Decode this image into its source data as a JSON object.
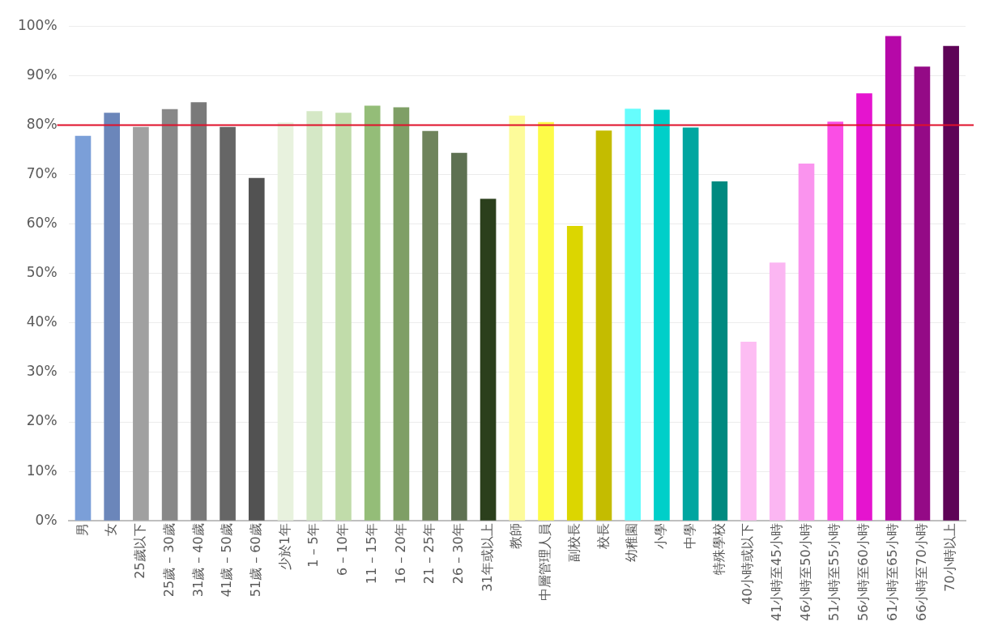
{
  "chart_data": {
    "type": "bar",
    "categories": [
      "男",
      "女",
      "25歲以下",
      "25歲 – 30歲",
      "31歲 – 40歲",
      "41歲 – 50歲",
      "51歲 – 60歲",
      "少於1年",
      "1 – 5年",
      "6 – 10年",
      "11 – 15年",
      "16 – 20年",
      "21 – 25年",
      "26 – 30年",
      "31年或以上",
      "教師",
      "中層管理人員",
      "副校長",
      "校長",
      "幼稚園",
      "小學",
      "中學",
      "特殊學校",
      "40小時或以下",
      "41小時至45小時",
      "46小時至50小時",
      "51小時至55小時",
      "56小時至60小時",
      "61小時至65小時",
      "66小時至70小時",
      "70小時以上"
    ],
    "values": [
      77.8,
      82.5,
      79.6,
      83.2,
      84.6,
      79.6,
      69.3,
      80.5,
      82.8,
      82.5,
      83.9,
      83.6,
      78.8,
      74.4,
      65.1,
      81.9,
      80.6,
      59.6,
      78.9,
      83.3,
      83.1,
      79.5,
      68.6,
      36.2,
      52.2,
      72.2,
      80.7,
      86.4,
      98.0,
      91.8,
      96.0
    ],
    "colors": [
      "#7b9fd8",
      "#6b86ba",
      "#a0a0a0",
      "#888888",
      "#7a7a7a",
      "#666666",
      "#525252",
      "#e8f2de",
      "#d5e8c6",
      "#c1dcaa",
      "#94bd78",
      "#7f9f66",
      "#6f845c",
      "#5e7152",
      "#2b3f1c",
      "#fdfb9a",
      "#fdfb48",
      "#dcd600",
      "#c4bc00",
      "#66fdfd",
      "#00cfc9",
      "#00a6a0",
      "#008a80",
      "#fdbdf3",
      "#fbb6f2",
      "#fa94ee",
      "#fa4ee5",
      "#e514cf",
      "#b608a8",
      "#940a86",
      "#5e0457"
    ],
    "ylim": [
      0,
      100
    ],
    "yticks": [
      {
        "value": 0,
        "label": "0%"
      },
      {
        "value": 10,
        "label": "10%"
      },
      {
        "value": 20,
        "label": "20%"
      },
      {
        "value": 30,
        "label": "30%"
      },
      {
        "value": 40,
        "label": "40%"
      },
      {
        "value": 50,
        "label": "50%"
      },
      {
        "value": 60,
        "label": "60%"
      },
      {
        "value": 70,
        "label": "70%"
      },
      {
        "value": 80,
        "label": "80%"
      },
      {
        "value": 90,
        "label": "90%"
      },
      {
        "value": 100,
        "label": "100%"
      }
    ],
    "grid": "y",
    "legend": false,
    "ref_lines": [
      {
        "axis": "y",
        "value": 80,
        "color": "#e0102a"
      }
    ]
  }
}
